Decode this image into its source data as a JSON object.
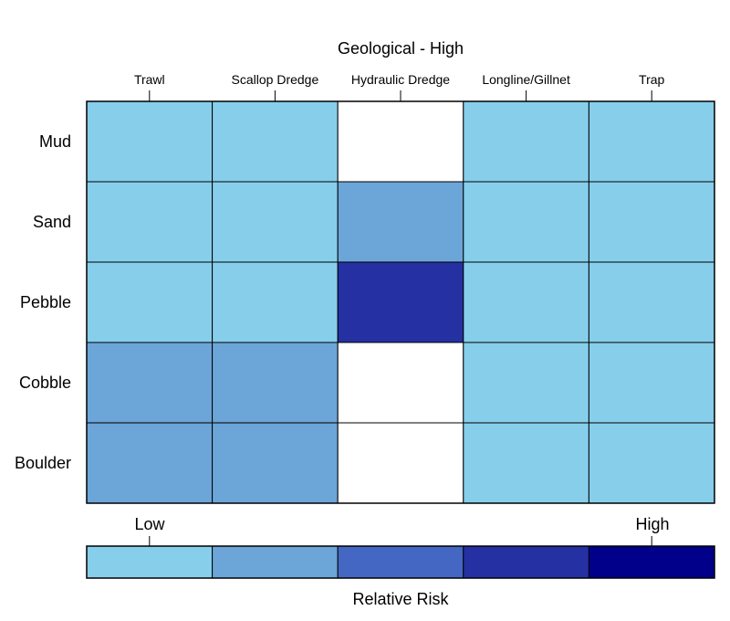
{
  "chart_data": {
    "type": "heatmap",
    "title": "Geological - High",
    "columns": [
      "Trawl",
      "Scallop Dredge",
      "Hydraulic Dredge",
      "Longline/Gillnet",
      "Trap"
    ],
    "rows": [
      "Mud",
      "Sand",
      "Pebble",
      "Cobble",
      "Boulder"
    ],
    "values": [
      [
        1,
        1,
        null,
        1,
        1
      ],
      [
        1,
        1,
        2,
        1,
        1
      ],
      [
        1,
        1,
        4,
        1,
        1
      ],
      [
        2,
        2,
        null,
        1,
        1
      ],
      [
        2,
        2,
        null,
        1,
        1
      ]
    ],
    "color_scale": {
      "levels": [
        1,
        2,
        3,
        4,
        5
      ],
      "colors": [
        "#87ceeb",
        "#6ca5d8",
        "#4467c3",
        "#2530a2",
        "#00008b"
      ],
      "low_label": "Low",
      "high_label": "High",
      "label": "Relative Risk"
    },
    "missing_color": "#ffffff",
    "grid": true
  }
}
